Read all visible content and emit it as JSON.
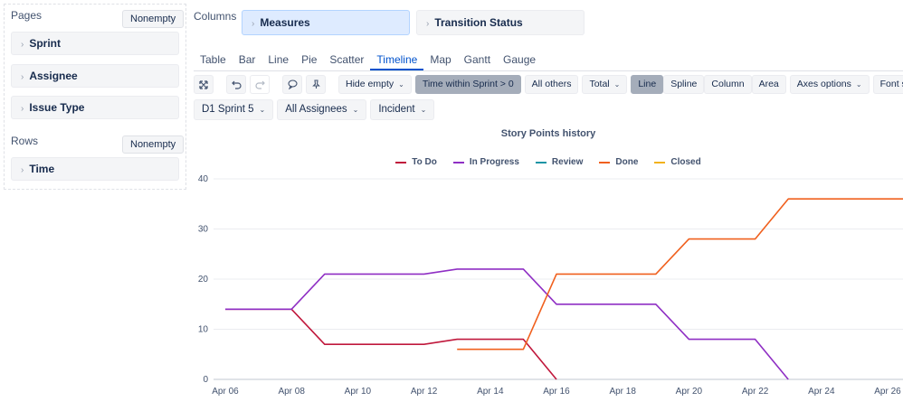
{
  "pages": {
    "label": "Pages",
    "nonempty": "Nonempty",
    "items": [
      {
        "label": "Sprint"
      },
      {
        "label": "Assignee"
      },
      {
        "label": "Issue Type"
      }
    ]
  },
  "rows": {
    "label": "Rows",
    "nonempty": "Nonempty",
    "items": [
      {
        "label": "Time"
      }
    ]
  },
  "columns": {
    "label": "Columns",
    "items": [
      {
        "label": "Measures"
      },
      {
        "label": "Transition Status"
      }
    ]
  },
  "tabs": [
    "Table",
    "Bar",
    "Line",
    "Pie",
    "Scatter",
    "Timeline",
    "Map",
    "Gantt",
    "Gauge"
  ],
  "active_tab": "Timeline",
  "toolbar": {
    "hide_empty": "Hide empty",
    "time_filter": "Time within Sprint > 0",
    "all_others": "All others",
    "total": "Total",
    "line": "Line",
    "spline": "Spline",
    "column": "Column",
    "area": "Area",
    "axes_options": "Axes options",
    "font_size": "Font size"
  },
  "filters": {
    "sprint": "D1 Sprint 5",
    "assignee": "All Assignees",
    "issue_type": "Incident"
  },
  "icons": [
    "expand-icon",
    "undo-icon",
    "redo-icon",
    "comment-icon",
    "pin-icon",
    "chevron-right-icon",
    "chevron-down-icon"
  ],
  "chart_data": {
    "type": "line",
    "title": "Story Points history",
    "legend_position": "top",
    "grid": true,
    "x_tick_labels": [
      "Apr 06",
      "Apr 08",
      "Apr 10",
      "Apr 12",
      "Apr 14",
      "Apr 16",
      "Apr 18",
      "Apr 20",
      "Apr 22",
      "Apr 24",
      "Apr 26"
    ],
    "ylim": [
      0,
      40
    ],
    "y_ticks": [
      0,
      10,
      20,
      30,
      40
    ],
    "series": [
      {
        "name": "To Do",
        "color": "#c0183c",
        "points": [
          [
            "Apr 06",
            14
          ],
          [
            "Apr 08",
            14
          ],
          [
            "Apr 09",
            7
          ],
          [
            "Apr 12",
            7
          ],
          [
            "Apr 13",
            8
          ],
          [
            "Apr 15",
            8
          ],
          [
            "Apr 16",
            0
          ]
        ]
      },
      {
        "name": "In Progress",
        "color": "#8f2fc4",
        "points": [
          [
            "Apr 06",
            14
          ],
          [
            "Apr 08",
            14
          ],
          [
            "Apr 09",
            21
          ],
          [
            "Apr 12",
            21
          ],
          [
            "Apr 13",
            22
          ],
          [
            "Apr 15",
            22
          ],
          [
            "Apr 16",
            15
          ],
          [
            "Apr 19",
            15
          ],
          [
            "Apr 20",
            8
          ],
          [
            "Apr 22",
            8
          ],
          [
            "Apr 23",
            0
          ]
        ]
      },
      {
        "name": "Review",
        "color": "#1a94a5",
        "points": []
      },
      {
        "name": "Done",
        "color": "#f0601e",
        "points": [
          [
            "Apr 13",
            6
          ],
          [
            "Apr 15",
            6
          ],
          [
            "Apr 16",
            21
          ],
          [
            "Apr 19",
            21
          ],
          [
            "Apr 20",
            28
          ],
          [
            "Apr 22",
            28
          ],
          [
            "Apr 23",
            36
          ],
          [
            "Apr 27",
            36
          ]
        ]
      },
      {
        "name": "Closed",
        "color": "#f2b21c",
        "points": []
      }
    ]
  }
}
